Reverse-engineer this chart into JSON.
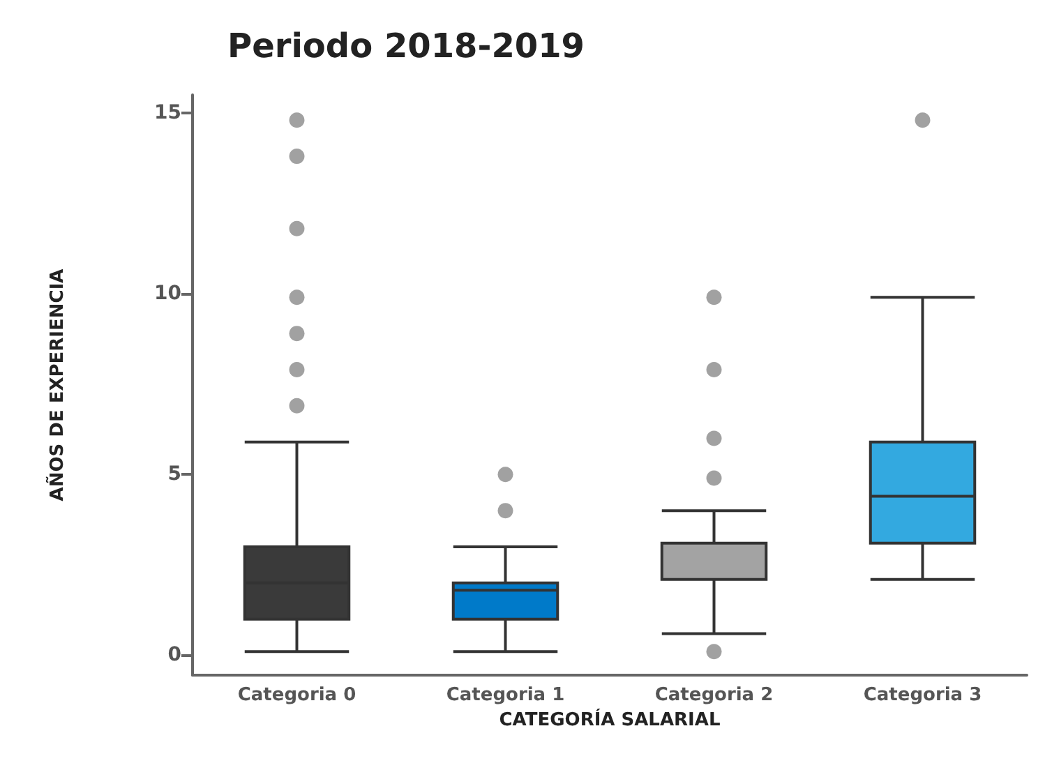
{
  "chart_data": {
    "type": "box",
    "title": "Periodo 2018-2019",
    "xlabel": "CATEGORÍA SALARIAL",
    "ylabel": "AÑOS DE EXPERIENCIA",
    "categories": [
      "Categoria 0",
      "Categoria 1",
      "Categoria 2",
      "Categoria 3"
    ],
    "colors": [
      "#3a3a3a",
      "#007ac9",
      "#a3a3a3",
      "#33a9e0"
    ],
    "boxes": [
      {
        "low": 0.1,
        "q1": 1.0,
        "median": 2.0,
        "q3": 3.0,
        "high": 5.9,
        "outliers": [
          14.8,
          13.8,
          11.8,
          9.9,
          8.9,
          7.9,
          6.9
        ]
      },
      {
        "low": 0.1,
        "q1": 1.0,
        "median": 1.8,
        "q3": 2.0,
        "high": 3.0,
        "outliers": [
          5.0,
          4.0
        ]
      },
      {
        "low": 0.6,
        "q1": 2.1,
        "median": 3.1,
        "q3": 3.1,
        "high": 4.0,
        "outliers": [
          9.9,
          7.9,
          6.0,
          4.9,
          0.1
        ]
      },
      {
        "low": 2.1,
        "q1": 3.1,
        "median": 4.4,
        "q3": 5.9,
        "high": 9.9,
        "outliers": [
          14.8
        ]
      }
    ],
    "ylim": [
      -0.55,
      15.5
    ],
    "yticks": [
      0,
      5,
      10,
      15
    ],
    "grid": false
  }
}
